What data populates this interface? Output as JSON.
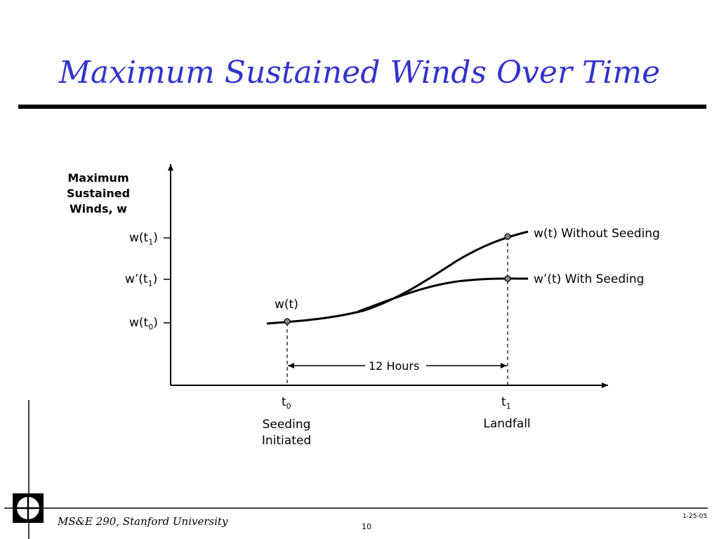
{
  "slide": {
    "title": "Maximum Sustained Winds Over Time",
    "accent_color": "#3333cc"
  },
  "diagram": {
    "y_axis_label": [
      "Maximum",
      "Sustained",
      "Winds, w"
    ],
    "y_ticks": [
      {
        "main": "w(t",
        "sub": "1",
        "end": ")"
      },
      {
        "main": "w’(t",
        "sub": "1",
        "end": ")"
      },
      {
        "main": "w(t",
        "sub": "0",
        "end": ")"
      }
    ],
    "point_label_wt": "w(t)",
    "curve_without_seeding": "w(t) Without Seeding",
    "curve_with_seeding": "w’(t) With Seeding",
    "interval_label": "12 Hours",
    "x_ticks": [
      {
        "main": "t",
        "sub": "0",
        "caption_line1": "Seeding",
        "caption_line2": "Initiated"
      },
      {
        "main": "t",
        "sub": "1",
        "caption_line1": "Landfall",
        "caption_line2": ""
      }
    ]
  },
  "footer": {
    "course": "MS&E 290, Stanford University",
    "page_number": "10",
    "date": "1-25-05"
  }
}
